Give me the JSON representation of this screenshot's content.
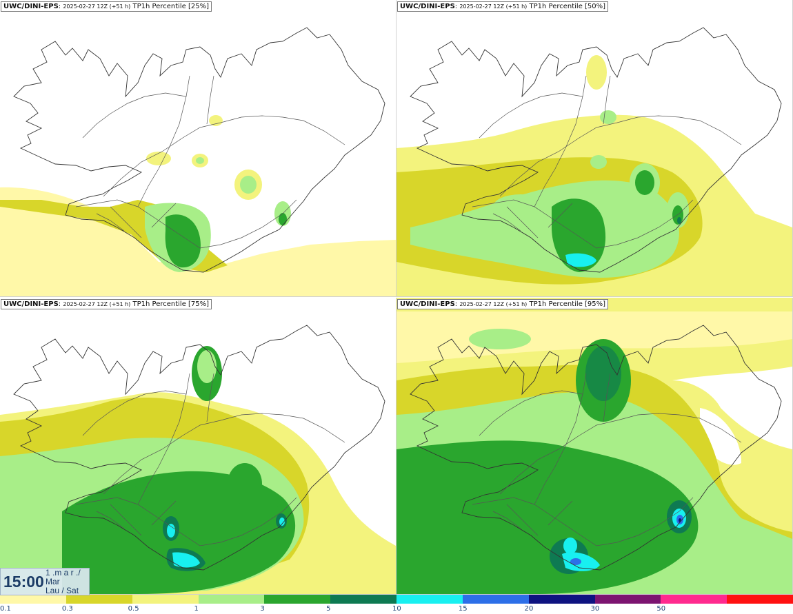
{
  "panels": [
    {
      "model": "UWC/DINI-EPS",
      "run": "2025-02-27 12Z (+51 h)",
      "field": "TP1h Percentile [25%]"
    },
    {
      "model": "UWC/DINI-EPS",
      "run": "2025-02-27 12Z (+51 h)",
      "field": "TP1h Percentile [50%]"
    },
    {
      "model": "UWC/DINI-EPS",
      "run": "2025-02-27 12Z (+51 h)",
      "field": "TP1h Percentile [75%]"
    },
    {
      "model": "UWC/DINI-EPS",
      "run": "2025-02-27 12Z (+51 h)",
      "field": "TP1h Percentile [95%]"
    }
  ],
  "timebox": {
    "time": "15:00",
    "line1": "1 .m a r ./",
    "line2": "Mar",
    "line3": "Lau / Sat"
  },
  "colorbar": {
    "ticks": [
      "0.1",
      "0.3",
      "0.5",
      "1",
      "3",
      "5",
      "10",
      "15",
      "20",
      "30",
      "50"
    ],
    "colors": [
      "#fff8a8",
      "#d8d62a",
      "#f3f37d",
      "#a8ee88",
      "#2aa62e",
      "#0e7a52",
      "#18f0f0",
      "#2d6fe8",
      "#0e1280",
      "#7c1470",
      "#ff2a8e",
      "#ff1111"
    ]
  },
  "shading": {
    "very_light_yellow": "#fff8a8",
    "light_yellow": "#f3f37d",
    "olive_yellow": "#d8d62a",
    "light_green": "#a8ee88",
    "green": "#2aa62e",
    "dark_green": "#0e7a52",
    "cyan": "#18f0f0",
    "blue": "#2d6fe8",
    "navy": "#0e1280"
  }
}
